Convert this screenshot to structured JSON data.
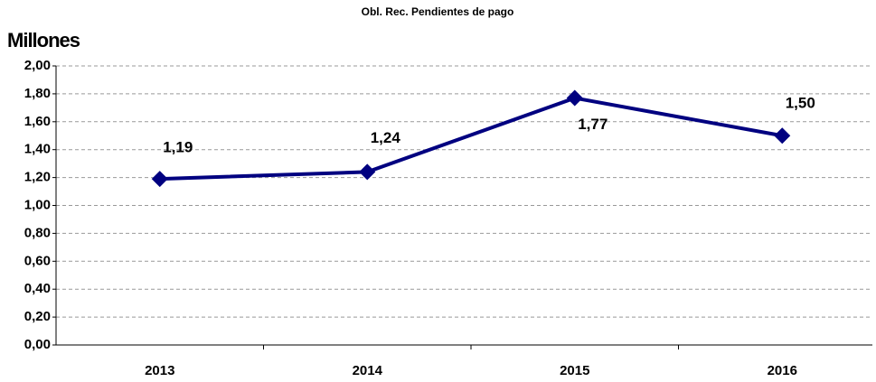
{
  "chart_data": {
    "type": "line",
    "title": "Obl. Rec. Pendientes de pago",
    "y_label": "Millones",
    "categories": [
      "2013",
      "2014",
      "2015",
      "2016"
    ],
    "series": [
      {
        "name": "Obl. Rec. Pendientes de pago",
        "color": "#000080",
        "values": [
          1.19,
          1.24,
          1.77,
          1.5
        ],
        "value_labels": [
          "1,19",
          "1,24",
          "1,77",
          "1,50"
        ]
      }
    ],
    "ylim": [
      0,
      2
    ],
    "yticks": [
      {
        "value": 0,
        "label": "0,00"
      },
      {
        "value": 0.2,
        "label": "0,20"
      },
      {
        "value": 0.4,
        "label": "0,40"
      },
      {
        "value": 0.6,
        "label": "0,60"
      },
      {
        "value": 0.8,
        "label": "0,80"
      },
      {
        "value": 1,
        "label": "1,00"
      },
      {
        "value": 1.2,
        "label": "1,20"
      },
      {
        "value": 1.4,
        "label": "1,40"
      },
      {
        "value": 1.6,
        "label": "1,60"
      },
      {
        "value": 1.8,
        "label": "1,80"
      },
      {
        "value": 2,
        "label": "2,00"
      }
    ],
    "grid": true
  }
}
